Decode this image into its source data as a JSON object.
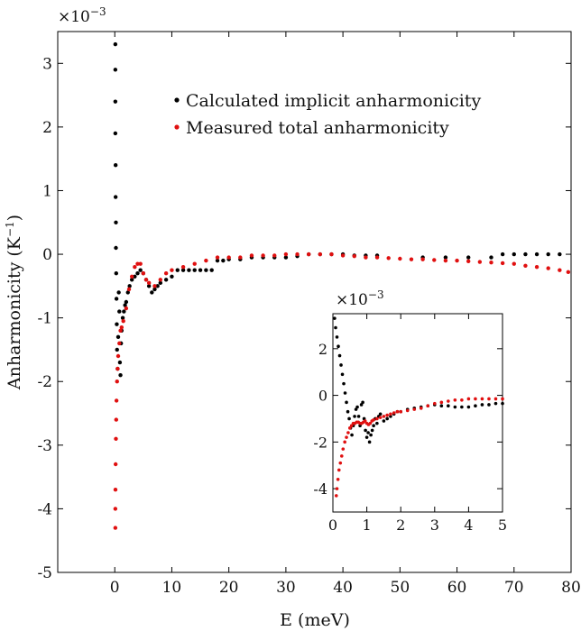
{
  "chart_data": [
    {
      "type": "scatter",
      "title": "",
      "xlabel": "E (meV)",
      "ylabel": "Anharmonicity (K",
      "ylabel_sup": "−1",
      "ylabel_close": ")",
      "y_multiplier": "×10",
      "y_multiplier_exp": "−3",
      "xlim": [
        -10,
        80
      ],
      "ylim": [
        -5,
        3.5
      ],
      "xticks": [
        0,
        10,
        20,
        30,
        40,
        50,
        60,
        70,
        80
      ],
      "yticks": [
        3,
        2,
        1,
        0,
        -1,
        -2,
        -3,
        -4,
        -5
      ],
      "ytick_labels": [
        "3",
        "2",
        "1",
        "0",
        "-1",
        "-2",
        "-3",
        "-4",
        "-5"
      ],
      "grid": false,
      "legend": "top-right",
      "series": [
        {
          "name": "Calculated implicit anharmonicity",
          "color": "#000000",
          "x": [
            0.1,
            0.1,
            0.1,
            0.1,
            0.15,
            0.15,
            0.2,
            0.2,
            0.25,
            0.3,
            0.35,
            0.4,
            0.5,
            0.6,
            0.7,
            0.8,
            0.9,
            1.0,
            1.1,
            1.2,
            1.4,
            1.6,
            1.8,
            2.0,
            2.3,
            2.6,
            3.0,
            3.5,
            4.0,
            4.5,
            5.0,
            5.5,
            6.0,
            6.5,
            7.0,
            7.5,
            8.0,
            9.0,
            10.0,
            11.0,
            12.0,
            13.0,
            14.0,
            15.0,
            16.0,
            17.0,
            18.0,
            19.0,
            20.0,
            22.0,
            24.0,
            26.0,
            28.0,
            30.0,
            32.0,
            34.0,
            36.0,
            38.0,
            40.0,
            42.0,
            44.0,
            46.0,
            54.0,
            58.0,
            62.0,
            66.0,
            68.0,
            70.0,
            72.0,
            74.0,
            76.0,
            78.0
          ],
          "y": [
            3.3,
            2.9,
            2.4,
            1.9,
            1.4,
            0.9,
            0.5,
            0.1,
            -0.3,
            -0.7,
            -1.1,
            -1.5,
            -1.8,
            -1.3,
            -0.6,
            -0.9,
            -1.7,
            -1.9,
            -1.4,
            -1.2,
            -1.0,
            -0.9,
            -0.8,
            -0.75,
            -0.6,
            -0.5,
            -0.4,
            -0.35,
            -0.3,
            -0.25,
            -0.3,
            -0.4,
            -0.5,
            -0.6,
            -0.55,
            -0.5,
            -0.45,
            -0.4,
            -0.35,
            -0.25,
            -0.25,
            -0.25,
            -0.25,
            -0.25,
            -0.25,
            -0.25,
            -0.1,
            -0.1,
            -0.08,
            -0.08,
            -0.05,
            -0.05,
            -0.05,
            -0.05,
            -0.03,
            0.0,
            0.0,
            0.0,
            0.0,
            -0.02,
            -0.02,
            -0.02,
            -0.05,
            -0.05,
            -0.05,
            -0.05,
            0.0,
            0.0,
            0.0,
            0.0,
            0.0,
            0.0
          ]
        },
        {
          "name": "Measured total anharmonicity",
          "color": "#e01010",
          "x": [
            0.1,
            0.1,
            0.12,
            0.15,
            0.2,
            0.25,
            0.3,
            0.4,
            0.5,
            0.6,
            0.8,
            1.0,
            1.2,
            1.5,
            2.0,
            2.5,
            3.0,
            3.5,
            4.0,
            4.5,
            5.0,
            5.5,
            6.0,
            7.0,
            8.0,
            9.0,
            10.0,
            12.0,
            14.0,
            16.0,
            18.0,
            20.0,
            22.0,
            24.0,
            26.0,
            28.0,
            30.0,
            32.0,
            34.0,
            36.0,
            38.0,
            40.0,
            42.0,
            44.0,
            46.0,
            48.0,
            50.0,
            52.0,
            54.0,
            56.0,
            58.0,
            60.0,
            62.0,
            64.0,
            66.0,
            68.0,
            70.0,
            72.0,
            74.0,
            76.0,
            78.0,
            79.5
          ],
          "y": [
            -4.3,
            -4.0,
            -3.7,
            -3.3,
            -2.9,
            -2.6,
            -2.3,
            -2.0,
            -1.8,
            -1.6,
            -1.4,
            -1.2,
            -1.15,
            -1.05,
            -0.85,
            -0.55,
            -0.35,
            -0.2,
            -0.15,
            -0.15,
            -0.3,
            -0.4,
            -0.45,
            -0.5,
            -0.4,
            -0.3,
            -0.25,
            -0.2,
            -0.15,
            -0.1,
            -0.05,
            -0.05,
            -0.05,
            -0.02,
            -0.02,
            -0.02,
            0.0,
            0.0,
            0.0,
            0.0,
            0.0,
            -0.02,
            -0.03,
            -0.05,
            -0.05,
            -0.06,
            -0.07,
            -0.08,
            -0.08,
            -0.09,
            -0.1,
            -0.1,
            -0.11,
            -0.12,
            -0.13,
            -0.14,
            -0.15,
            -0.18,
            -0.2,
            -0.22,
            -0.25,
            -0.28
          ]
        }
      ]
    },
    {
      "type": "scatter",
      "title": "",
      "xlabel": "",
      "ylabel": "",
      "y_multiplier": "×10",
      "y_multiplier_exp": "−3",
      "xlim": [
        0,
        5
      ],
      "ylim": [
        -5,
        3.5
      ],
      "xticks": [
        0,
        1,
        2,
        3,
        4,
        5
      ],
      "yticks": [
        2,
        0,
        -2,
        -4
      ],
      "ytick_labels": [
        "2",
        "0",
        "-2",
        "-4"
      ],
      "grid": false,
      "series": [
        {
          "color": "#000000",
          "x": [
            0.05,
            0.08,
            0.12,
            0.16,
            0.2,
            0.24,
            0.28,
            0.32,
            0.36,
            0.4,
            0.44,
            0.48,
            0.52,
            0.56,
            0.6,
            0.64,
            0.68,
            0.72,
            0.76,
            0.8,
            0.84,
            0.88,
            0.92,
            0.96,
            1.0,
            1.04,
            1.08,
            1.12,
            1.16,
            1.2,
            1.25,
            1.3,
            1.35,
            1.4,
            1.5,
            1.6,
            1.7,
            1.8,
            1.9,
            2.0,
            2.2,
            2.4,
            2.6,
            2.8,
            3.0,
            3.2,
            3.4,
            3.6,
            3.8,
            4.0,
            4.2,
            4.4,
            4.6,
            4.8,
            5.0
          ],
          "y": [
            3.3,
            2.9,
            2.5,
            2.1,
            1.7,
            1.3,
            0.9,
            0.5,
            0.1,
            -0.3,
            -0.7,
            -1.0,
            -1.4,
            -1.7,
            -1.3,
            -0.9,
            -0.6,
            -0.5,
            -0.9,
            -1.3,
            -0.4,
            -0.3,
            -1.0,
            -1.5,
            -1.8,
            -1.6,
            -2.0,
            -1.7,
            -1.5,
            -1.3,
            -1.0,
            -1.2,
            -0.9,
            -0.8,
            -1.1,
            -1.0,
            -0.9,
            -0.8,
            -0.7,
            -0.7,
            -0.6,
            -0.55,
            -0.5,
            -0.45,
            -0.4,
            -0.45,
            -0.45,
            -0.5,
            -0.5,
            -0.5,
            -0.45,
            -0.4,
            -0.4,
            -0.35,
            -0.35
          ]
        },
        {
          "color": "#e01010",
          "x": [
            0.1,
            0.12,
            0.15,
            0.18,
            0.22,
            0.26,
            0.3,
            0.35,
            0.4,
            0.45,
            0.5,
            0.55,
            0.6,
            0.65,
            0.7,
            0.75,
            0.8,
            0.85,
            0.9,
            0.95,
            1.0,
            1.05,
            1.1,
            1.15,
            1.2,
            1.3,
            1.4,
            1.5,
            1.6,
            1.7,
            1.8,
            1.9,
            2.0,
            2.2,
            2.4,
            2.6,
            2.8,
            3.0,
            3.2,
            3.4,
            3.6,
            3.8,
            4.0,
            4.2,
            4.4,
            4.6,
            4.8,
            5.0
          ],
          "y": [
            -4.3,
            -4.0,
            -3.6,
            -3.2,
            -2.9,
            -2.6,
            -2.3,
            -2.0,
            -1.8,
            -1.6,
            -1.4,
            -1.3,
            -1.2,
            -1.2,
            -1.15,
            -1.15,
            -1.2,
            -1.2,
            -1.15,
            -1.1,
            -1.2,
            -1.25,
            -1.2,
            -1.1,
            -1.05,
            -1.0,
            -0.95,
            -0.9,
            -0.85,
            -0.8,
            -0.75,
            -0.7,
            -0.7,
            -0.65,
            -0.6,
            -0.55,
            -0.45,
            -0.35,
            -0.3,
            -0.25,
            -0.2,
            -0.2,
            -0.15,
            -0.15,
            -0.15,
            -0.15,
            -0.15,
            -0.15
          ]
        }
      ]
    }
  ]
}
